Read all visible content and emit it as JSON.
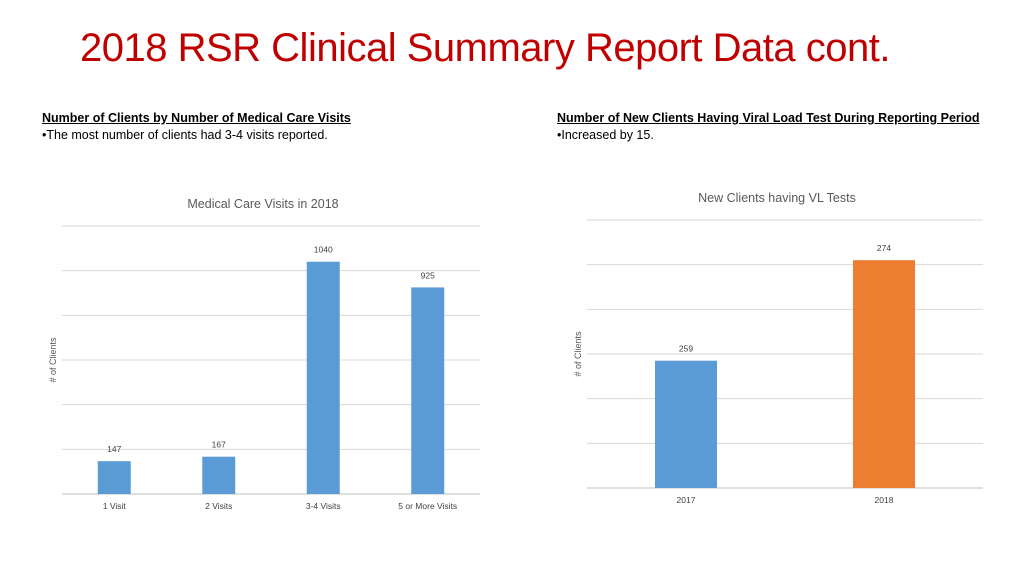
{
  "slide": {
    "title": "2018 RSR Clinical Summary Report Data cont."
  },
  "left_panel": {
    "heading": "Number of Clients by Number of Medical Care Visits",
    "bullet": "•The most number of clients had 3-4 visits reported."
  },
  "right_panel": {
    "heading": "Number of New Clients Having Viral Load Test During Reporting Period",
    "bullet": "•Increased by 15."
  },
  "chart_data": [
    {
      "type": "bar",
      "title": "Medical Care Visits in 2018",
      "xlabel": "",
      "ylabel": "# of Clients",
      "categories": [
        "1 Visit",
        "2 Visits",
        "3-4 Visits",
        "5 or More Visits"
      ],
      "values": [
        147,
        167,
        1040,
        925
      ],
      "data_labels": [
        "147",
        "167",
        "1040",
        "925"
      ],
      "ylim": [
        0,
        1200
      ],
      "grid": true,
      "colors": [
        "#5b9bd5",
        "#5b9bd5",
        "#5b9bd5",
        "#5b9bd5"
      ]
    },
    {
      "type": "bar",
      "title": "New Clients having VL Tests",
      "xlabel": "",
      "ylabel": "# of Clients",
      "categories": [
        "2017",
        "2018"
      ],
      "values": [
        259,
        274
      ],
      "data_labels": [
        "259",
        "274"
      ],
      "ylim": [
        240,
        280
      ],
      "grid": true,
      "colors": [
        "#5b9bd5",
        "#ed7d31"
      ]
    }
  ]
}
